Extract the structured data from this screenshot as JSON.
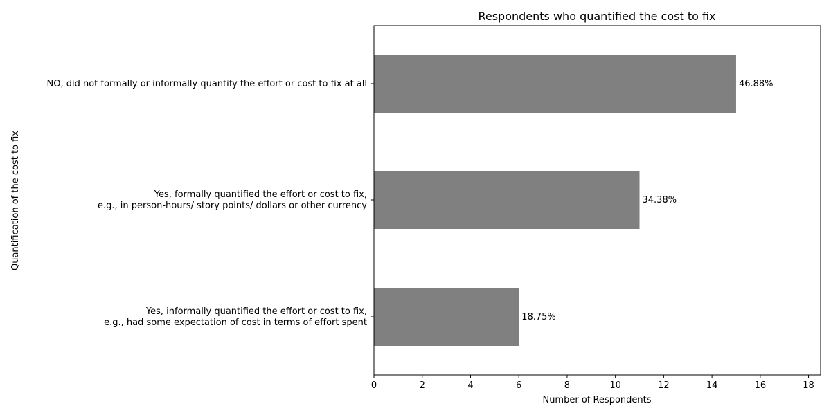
{
  "chart_data": {
    "type": "bar",
    "orientation": "horizontal",
    "title": "Respondents who quantified the cost to fix",
    "xlabel": "Number of Respondents",
    "ylabel": "Quantification of the cost to fix",
    "xlim": [
      0,
      18.5
    ],
    "xticks": [
      0,
      2,
      4,
      6,
      8,
      10,
      12,
      14,
      16,
      18
    ],
    "grid": false,
    "legend": "none",
    "bar_color": "#808080",
    "categories": [
      [
        "NO, did not formally or informally quantify the effort or cost to fix at all"
      ],
      [
        "Yes, formally quantified the effort or cost to fix,",
        "e.g., in person-hours/ story points/ dollars or other currency"
      ],
      [
        "Yes, informally quantified the effort or cost to fix,",
        "e.g., had some expectation of cost in terms of effort spent"
      ]
    ],
    "values": [
      15,
      11,
      6
    ],
    "data_labels": [
      "46.88%",
      "34.38%",
      "18.75%"
    ]
  }
}
